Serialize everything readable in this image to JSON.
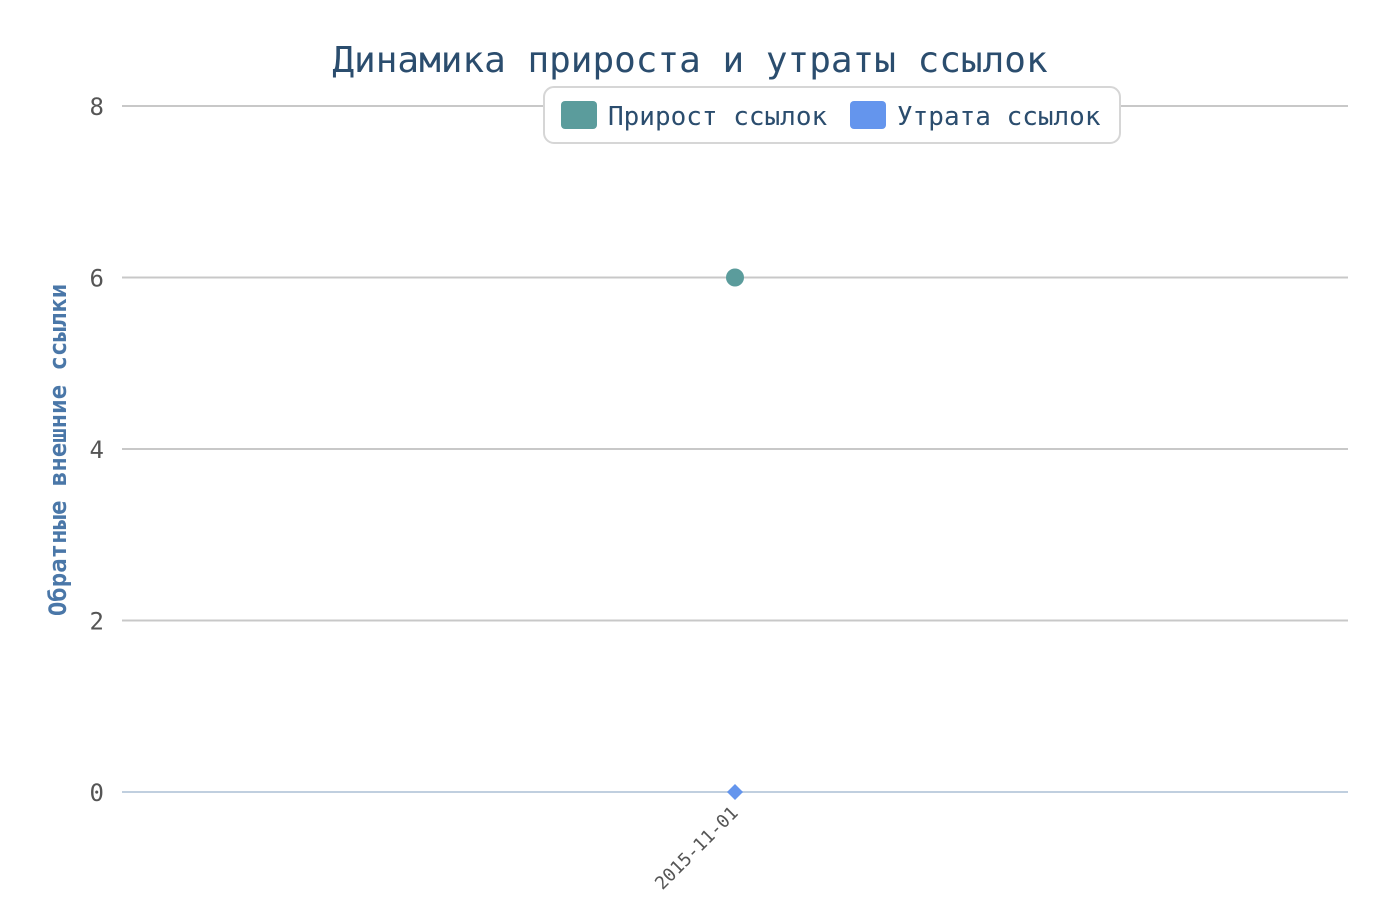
{
  "chart_data": {
    "type": "scatter",
    "title": "Динамика прироста и утраты ссылок",
    "ylabel": "Обратные внешние ссылки",
    "xlabel": "",
    "x": [
      "2015-11-01"
    ],
    "ylim": [
      0,
      8
    ],
    "yticks": [
      0,
      2,
      4,
      6,
      8
    ],
    "grid": true,
    "legend_position": "top-center",
    "series": [
      {
        "name": "Прирост ссылок",
        "values": [
          6
        ],
        "color": "#5b9c9c",
        "marker": "circle"
      },
      {
        "name": "Утрата ссылок",
        "values": [
          0
        ],
        "color": "#6495ed",
        "marker": "diamond"
      }
    ]
  }
}
